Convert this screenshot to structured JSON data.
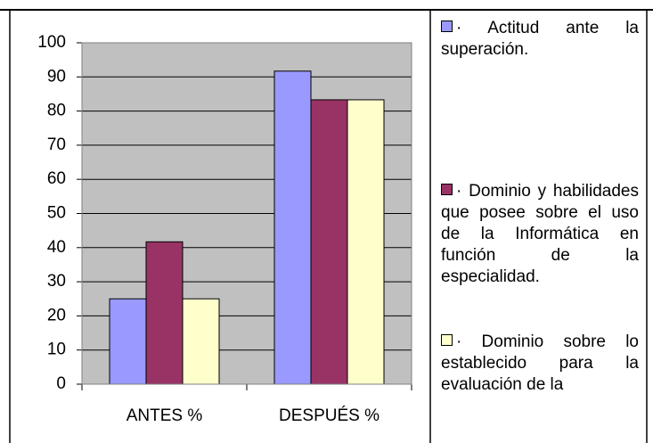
{
  "chart_data": {
    "type": "bar",
    "categories": [
      "ANTES  %",
      "DESPUÉS  %"
    ],
    "series": [
      {
        "name": "· Actitud ante la superación.",
        "color": "#9999ff",
        "values": [
          25,
          91.7
        ]
      },
      {
        "name": "· Dominio y habilidades que posee sobre el uso de la Informática en función de la especialidad.",
        "color": "#993366",
        "values": [
          41.7,
          83.3
        ]
      },
      {
        "name": "· Dominio sobre lo establecido para la evaluación de la",
        "color": "#ffffcc",
        "values": [
          25,
          83.3
        ]
      }
    ],
    "ylim": [
      0,
      100
    ],
    "yticks": [
      0,
      10,
      20,
      30,
      40,
      50,
      60,
      70,
      80,
      90,
      100
    ],
    "grid": true,
    "legend": "right",
    "plot_background": "#c0c0c0"
  }
}
